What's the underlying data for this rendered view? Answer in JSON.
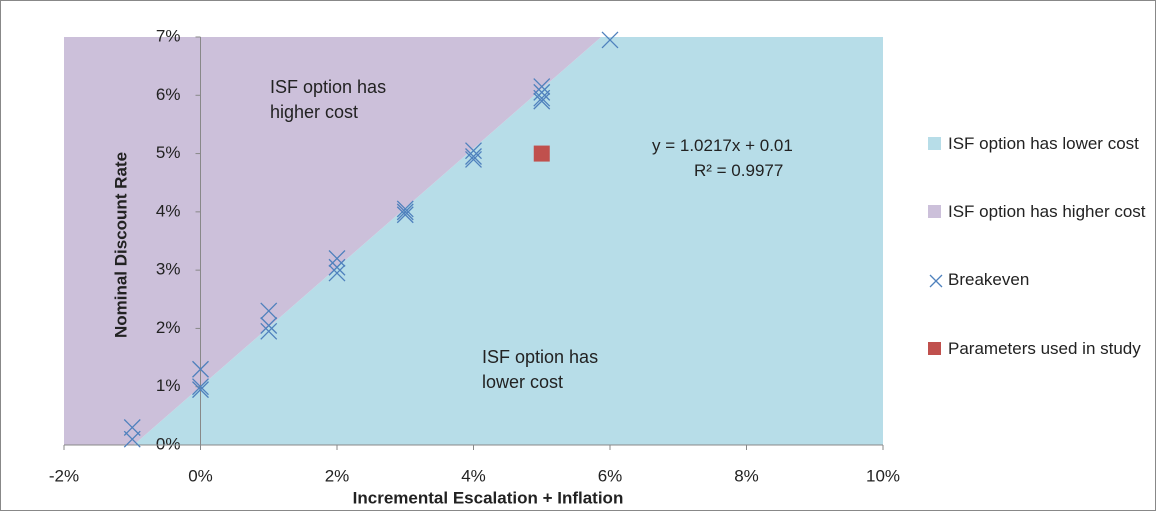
{
  "chart_data": {
    "type": "scatter",
    "x_label": "Incremental Escalation + Inflation",
    "y_label": "Nominal Discount Rate",
    "xlim": [
      -2,
      10
    ],
    "xticks": [
      {
        "value": -2,
        "label": "-2%"
      },
      {
        "value": 0,
        "label": "0%"
      },
      {
        "value": 2,
        "label": "2%"
      },
      {
        "value": 4,
        "label": "4%"
      },
      {
        "value": 6,
        "label": "6%"
      },
      {
        "value": 8,
        "label": "8%"
      },
      {
        "value": 10,
        "label": "10%"
      }
    ],
    "ylim": [
      0,
      7
    ],
    "yticks": [
      {
        "value": 0,
        "label": "0%"
      },
      {
        "value": 1,
        "label": "1%"
      },
      {
        "value": 2,
        "label": "2%"
      },
      {
        "value": 3,
        "label": "3%"
      },
      {
        "value": 4,
        "label": "4%"
      },
      {
        "value": 5,
        "label": "5%"
      },
      {
        "value": 6,
        "label": "6%"
      },
      {
        "value": 7,
        "label": "7%"
      }
    ],
    "grid": false,
    "legend": "right",
    "series": [
      {
        "name": "ISF option has lower cost",
        "color": "#b7dde8",
        "mark": "area",
        "x": [
          -0.98,
          5.87,
          10,
          10
        ],
        "values": [
          0,
          7,
          7,
          0
        ]
      },
      {
        "name": "ISF option has higher cost",
        "color": "#ccc0da",
        "mark": "area",
        "x": [
          -2,
          -0.98,
          5.87,
          -2
        ],
        "values": [
          0,
          0,
          7,
          7
        ]
      },
      {
        "name": "Breakeven",
        "color": "#4f81bd",
        "mark": "x",
        "x": [
          -1,
          -1,
          0,
          0,
          0,
          1,
          1,
          1,
          2,
          2,
          2,
          3,
          3,
          3,
          4,
          4,
          4,
          5,
          5,
          5,
          5,
          6
        ],
        "values": [
          0.3,
          0.1,
          1.3,
          1.0,
          0.95,
          2.3,
          2.05,
          1.95,
          3.2,
          3.05,
          2.95,
          4.05,
          4.0,
          3.95,
          5.05,
          4.95,
          4.9,
          6.15,
          6.05,
          5.95,
          5.9,
          6.95
        ]
      },
      {
        "name": "Parameters used in study",
        "color": "#c0504d",
        "mark": "square",
        "x": [
          5
        ],
        "values": [
          5
        ]
      }
    ],
    "annotations": [
      "ISF option has higher cost",
      "ISF option has lower cost",
      "y = 1.0217x + 0.01",
      "R² = 0.9977"
    ]
  }
}
